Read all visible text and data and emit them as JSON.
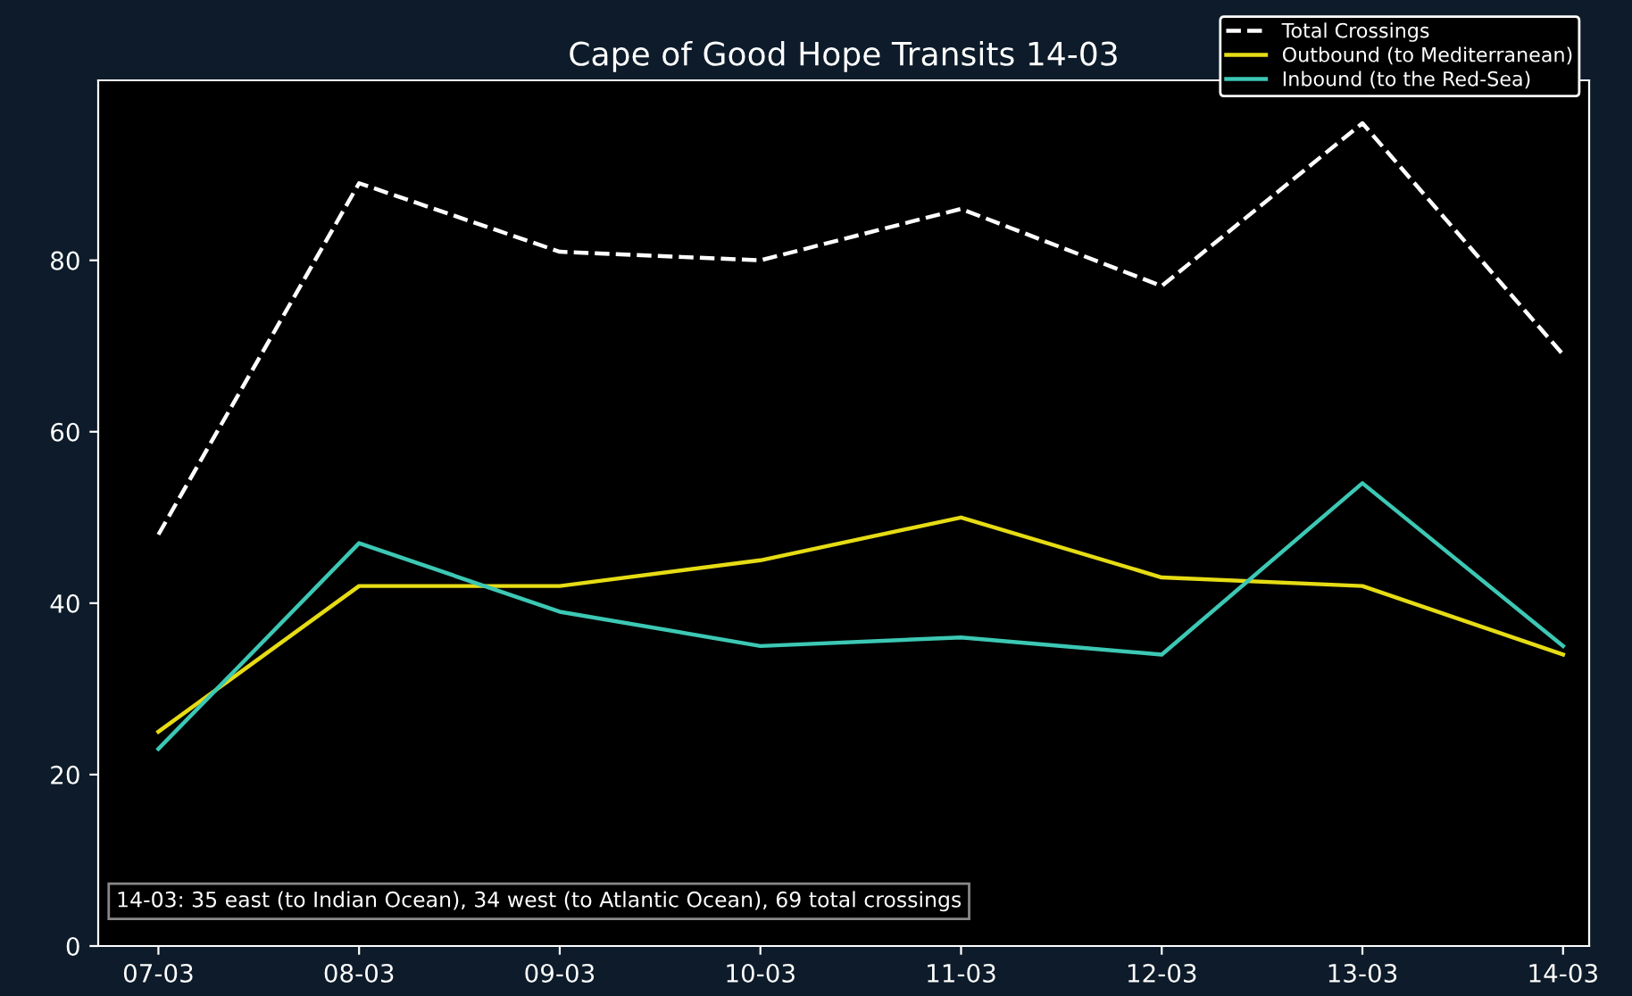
{
  "chart_data": {
    "type": "line",
    "title": "Cape of Good Hope Transits 14-03",
    "categories": [
      "07-03",
      "08-03",
      "09-03",
      "10-03",
      "11-03",
      "12-03",
      "13-03",
      "14-03"
    ],
    "series": [
      {
        "name": "Total Crossings",
        "color": "#ffffff",
        "line_style": "dashed",
        "values": [
          48,
          89,
          81,
          80,
          86,
          77,
          96,
          69
        ]
      },
      {
        "name": "Outbound (to Mediterranean)",
        "color": "#e6dc14",
        "line_style": "solid",
        "values": [
          25,
          42,
          42,
          45,
          50,
          43,
          42,
          34
        ]
      },
      {
        "name": "Inbound (to the Red-Sea)",
        "color": "#3cc8b4",
        "line_style": "solid",
        "values": [
          23,
          47,
          39,
          35,
          36,
          34,
          54,
          35
        ]
      }
    ],
    "ylim": [
      0,
      101
    ],
    "yticks": [
      0,
      20,
      40,
      60,
      80
    ],
    "grid": false,
    "legend": "top right",
    "marker": "none",
    "annotations": [
      "14-03: 35 east (to Indian Ocean), 34 west (to Atlantic Ocean), 69 total crossings"
    ]
  }
}
